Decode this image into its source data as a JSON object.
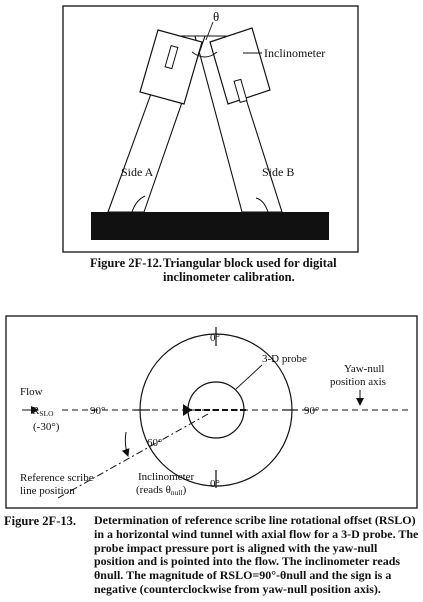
{
  "figure_12": {
    "labels": {
      "theta": "θ",
      "inclinometer": "Inclinometer",
      "side_a": "Side A",
      "side_b": "Side B"
    },
    "caption": {
      "number": "Figure 2F-12.",
      "text": "Triangular block used for digital inclinometer calibration."
    }
  },
  "figure_13": {
    "labels": {
      "probe": "3-D probe",
      "yaw_null_line1": "Yaw-null",
      "yaw_null_line2": "position axis",
      "flow": "Flow",
      "deg_top": "0°",
      "deg_bottom": "0°",
      "deg_left": "90°",
      "deg_right": "90°",
      "rslo_main": "R",
      "rslo_sub": "SLO",
      "rslo_value": "(-30°)",
      "sixty": "60°",
      "ref_line1": "Reference scribe",
      "ref_line2": "line position",
      "incl_line1": "Inclinometer",
      "incl_line2_prefix": "(reads θ",
      "incl_line2_sub": "null",
      "incl_line2_suffix": ")"
    },
    "caption": {
      "number": "Figure 2F-13.",
      "text": "Determination of reference scribe line rotational offset (RSLO) in a horizontal wind tunnel with axial flow for a 3-D probe. The probe impact pressure port is aligned with the yaw-null position and is pointed into the flow. The inclinometer reads θnull. The magnitude of RSLO=90°-θnull and the sign is a negative (counterclockwise from yaw-null position axis)."
    }
  }
}
